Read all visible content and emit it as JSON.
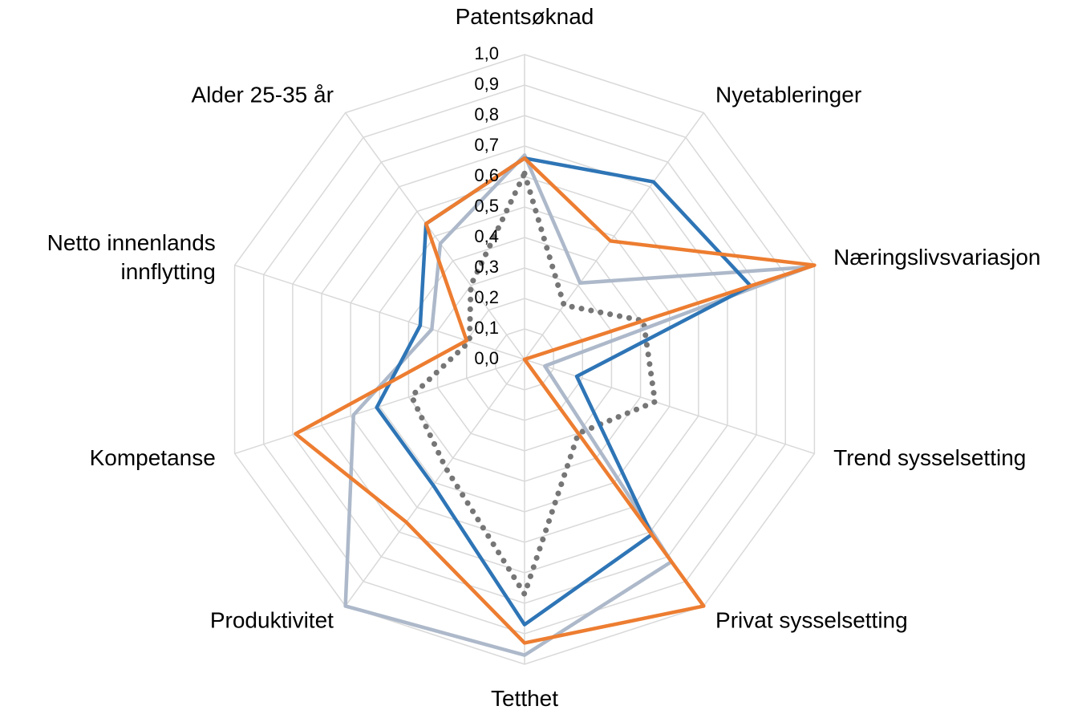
{
  "chart_data": {
    "type": "radar",
    "categories": [
      "Patentsøknad",
      "Nyetableringer",
      "Næringslivsvariasjon",
      "Trend sysselsetting",
      "Privat sysselsetting",
      "Tetthet",
      "Produktivitet",
      "Kompetanse",
      "Netto innenlands\ninnflytting",
      "Alder 25-35 år"
    ],
    "series": [
      {
        "color": "#8497b0",
        "style": "dotted",
        "values": [
          0.61,
          0.22,
          0.41,
          0.45,
          0.3,
          0.77,
          0.44,
          0.39,
          0.19,
          0.3
        ]
      },
      {
        "color": "#adb9ca",
        "values": [
          0.67,
          0.31,
          0.98,
          0.07,
          0.82,
          0.97,
          1.0,
          0.59,
          0.32,
          0.47
        ]
      },
      {
        "color": "#2e75b6",
        "values": [
          0.66,
          0.72,
          0.78,
          0.18,
          0.71,
          0.87,
          0.51,
          0.51,
          0.36,
          0.55
        ]
      },
      {
        "color": "#ed7d31",
        "values": [
          0.66,
          0.48,
          1.0,
          0.0,
          1.0,
          0.93,
          0.66,
          0.79,
          0.2,
          0.55
        ]
      }
    ],
    "ylim": [
      0,
      1
    ],
    "yticks": [
      {
        "value": 0,
        "label": "0,0"
      },
      {
        "value": 0.1,
        "label": "0,1"
      },
      {
        "value": 0.2,
        "label": "0,2"
      },
      {
        "value": 0.3,
        "label": "0,3"
      },
      {
        "value": 0.4,
        "label": "0,4"
      },
      {
        "value": 0.5,
        "label": "0,5"
      },
      {
        "value": 0.6,
        "label": "0,6"
      },
      {
        "value": 0.7,
        "label": "0,7"
      },
      {
        "value": 0.8,
        "label": "0,8"
      },
      {
        "value": 0.9,
        "label": "0,9"
      },
      {
        "value": 1.0,
        "label": "1,0"
      }
    ],
    "grid": true
  }
}
